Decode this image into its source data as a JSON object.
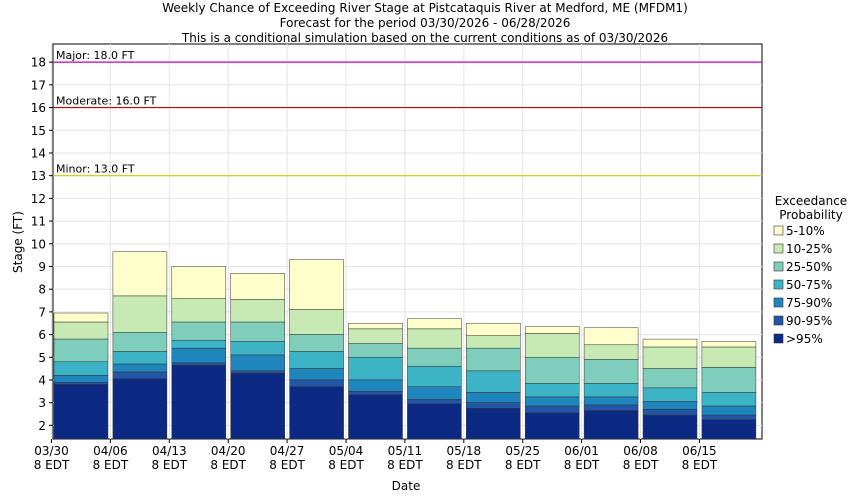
{
  "chart_data": {
    "type": "bar",
    "title_lines": [
      "Weekly Chance of Exceeding River Stage at Pistcataquis River at Medford, ME (MFDM1)",
      "Forecast for the period 03/30/2026 - 06/28/2026",
      "This is a conditional simulation based on the current conditions as of 03/30/2026"
    ],
    "xlabel": "Date",
    "ylabel": "Stage (FT)",
    "ylim": [
      1.4,
      18.8
    ],
    "yticks": [
      2,
      3,
      4,
      5,
      6,
      7,
      8,
      9,
      10,
      11,
      12,
      13,
      14,
      15,
      16,
      17,
      18
    ],
    "grid": true,
    "categories": [
      [
        "03/30",
        "8 EDT"
      ],
      [
        "04/06",
        "8 EDT"
      ],
      [
        "04/13",
        "8 EDT"
      ],
      [
        "04/20",
        "8 EDT"
      ],
      [
        "04/27",
        "8 EDT"
      ],
      [
        "05/04",
        "8 EDT"
      ],
      [
        "05/11",
        "8 EDT"
      ],
      [
        "05/18",
        "8 EDT"
      ],
      [
        "05/25",
        "8 EDT"
      ],
      [
        "06/01",
        "8 EDT"
      ],
      [
        "06/08",
        "8 EDT"
      ],
      [
        "06/15",
        "8 EDT"
      ]
    ],
    "legend": {
      "title_lines": [
        "Exceedance",
        "Probability"
      ],
      "position": "right"
    },
    "series": [
      {
        "name": ">95%",
        "color": "#0c2a84",
        "values": [
          3.8,
          4.05,
          4.65,
          4.3,
          3.7,
          3.35,
          2.95,
          2.75,
          2.55,
          2.65,
          2.45,
          2.25
        ]
      },
      {
        "name": "90-95%",
        "color": "#2157a6",
        "values": [
          3.9,
          4.35,
          4.75,
          4.4,
          4.0,
          3.5,
          3.15,
          3.0,
          2.85,
          2.9,
          2.7,
          2.45
        ]
      },
      {
        "name": "75-90%",
        "color": "#1e86bd",
        "values": [
          4.2,
          4.7,
          5.4,
          5.1,
          4.5,
          4.0,
          3.7,
          3.45,
          3.25,
          3.25,
          3.05,
          2.85
        ]
      },
      {
        "name": "50-75%",
        "color": "#3db4c6",
        "values": [
          4.8,
          5.25,
          5.75,
          5.7,
          5.25,
          5.0,
          4.6,
          4.4,
          3.85,
          3.85,
          3.65,
          3.45
        ]
      },
      {
        "name": "25-50%",
        "color": "#7fcdbb",
        "values": [
          5.8,
          6.1,
          6.55,
          6.55,
          6.0,
          5.6,
          5.4,
          5.4,
          5.0,
          4.9,
          4.5,
          4.55
        ]
      },
      {
        "name": "10-25%",
        "color": "#c7e9b4",
        "values": [
          6.55,
          7.7,
          7.6,
          7.55,
          7.1,
          6.25,
          6.25,
          5.95,
          6.05,
          5.55,
          5.45,
          5.45
        ]
      },
      {
        "name": "5-10%",
        "color": "#ffffcc",
        "values": [
          6.95,
          9.65,
          9.0,
          8.7,
          9.3,
          6.5,
          6.7,
          6.5,
          6.35,
          6.3,
          5.8,
          5.7
        ]
      }
    ],
    "flood_levels": [
      {
        "label": "Major: 18.0 FT",
        "value": 18.0,
        "color": "#c000c0"
      },
      {
        "label": "Moderate: 16.0 FT",
        "value": 16.0,
        "color": "#cc0000"
      },
      {
        "label": "Minor: 13.0 FT",
        "value": 13.0,
        "color": "#cccc00"
      }
    ]
  }
}
